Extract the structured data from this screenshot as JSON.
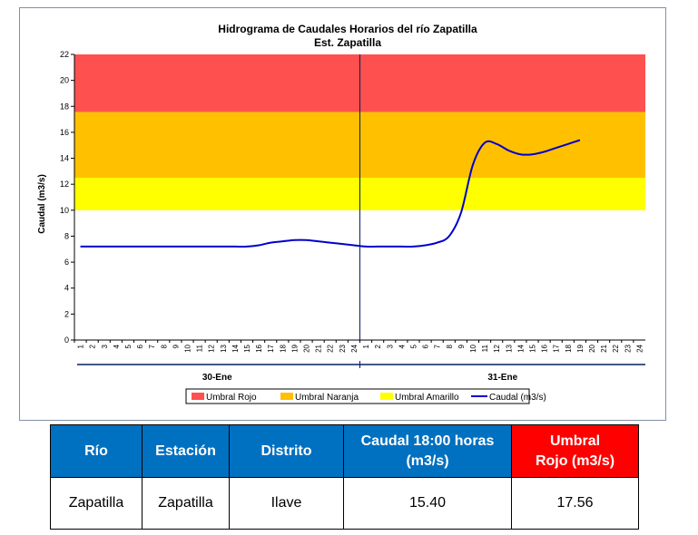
{
  "chart_data": {
    "type": "line",
    "title": "Hidrograma de Caudales Horarios del río Zapatilla",
    "subtitle": "Est. Zapatilla",
    "ylabel": "Caudal  (m3/s)",
    "ylim": [
      0,
      22
    ],
    "yticks": [
      "0",
      "2",
      "4",
      "6",
      "8",
      "10",
      "12",
      "14",
      "16",
      "18",
      "20",
      "22"
    ],
    "hour_ticks": [
      "1",
      "2",
      "3",
      "4",
      "5",
      "6",
      "7",
      "8",
      "9",
      "10",
      "11",
      "12",
      "13",
      "14",
      "15",
      "16",
      "17",
      "18",
      "19",
      "20",
      "21",
      "22",
      "23",
      "24",
      "1",
      "2",
      "3",
      "4",
      "5",
      "6",
      "7",
      "8",
      "9",
      "10",
      "11",
      "12",
      "13",
      "14",
      "15",
      "16",
      "17",
      "18",
      "19",
      "20",
      "21",
      "22",
      "23",
      "24"
    ],
    "day_labels": [
      "30-Ene",
      "31-Ene"
    ],
    "bands": [
      {
        "name": "Umbral Rojo",
        "from": 17.56,
        "to": 22,
        "color": "#ff5050"
      },
      {
        "name": "Umbral Naranja",
        "from": 12.5,
        "to": 17.56,
        "color": "#ffc000"
      },
      {
        "name": "Umbral Amarillo",
        "from": 10,
        "to": 12.5,
        "color": "#ffff00"
      }
    ],
    "series": [
      {
        "name": "Caudal (m3/s)",
        "color": "#0000cc",
        "values": [
          7.2,
          7.2,
          7.2,
          7.2,
          7.2,
          7.2,
          7.2,
          7.2,
          7.2,
          7.2,
          7.2,
          7.2,
          7.2,
          7.2,
          7.2,
          7.3,
          7.5,
          7.6,
          7.7,
          7.7,
          7.6,
          7.5,
          7.4,
          7.3,
          7.2,
          7.2,
          7.2,
          7.2,
          7.2,
          7.3,
          7.5,
          8.0,
          9.8,
          13.5,
          15.2,
          15.1,
          14.6,
          14.3,
          14.3,
          14.5,
          14.8,
          15.1,
          15.4
        ]
      }
    ],
    "legend": [
      "Umbral Rojo",
      "Umbral Naranja",
      "Umbral Amarillo",
      "Caudal (m3/s)"
    ],
    "legend_position": "bottom"
  },
  "table": {
    "headers": [
      {
        "label": "Río",
        "style": "blue"
      },
      {
        "label": "Estación",
        "style": "blue"
      },
      {
        "label": "Distrito",
        "style": "blue"
      },
      {
        "label": "Caudal 18:00 horas\n(m3/s)",
        "style": "blue"
      },
      {
        "label": "Umbral\nRojo (m3/s)",
        "style": "red"
      }
    ],
    "row": [
      "Zapatilla",
      "Zapatilla",
      "Ilave",
      "15.40",
      "17.56"
    ]
  }
}
